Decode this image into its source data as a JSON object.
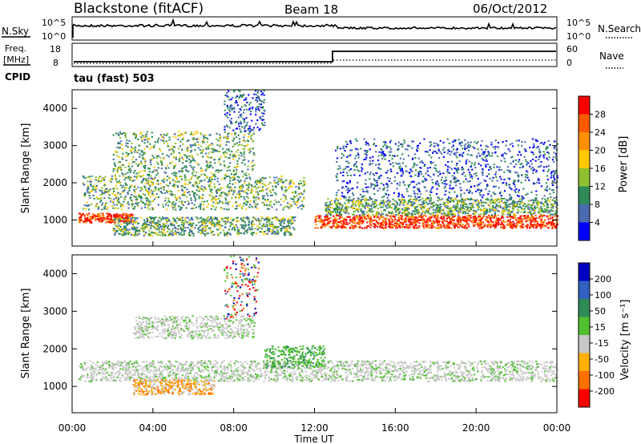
{
  "header": {
    "title": "Blackstone (fitACF)",
    "beam": "Beam 18",
    "date": "06/Oct/2012"
  },
  "nsky_panel": {
    "left_label": "N.Sky",
    "left_ticks": [
      "10^5",
      "10^0"
    ],
    "right_ticks": [
      "10^5",
      "10^0"
    ],
    "right_label": "N.Search"
  },
  "freq_panel": {
    "left_label_1": "Freq.",
    "left_label_2": "[MHz]",
    "left_ticks": [
      "18",
      "8"
    ],
    "right_ticks": [
      "60",
      "0"
    ],
    "right_label": "Nave",
    "cpid_label": "CPID",
    "cpid_value": "tau (fast) 503"
  },
  "chart_data": [
    {
      "type": "heatmap",
      "name": "power",
      "ylabel": "Slant Range [km]",
      "y_ticks": [
        "1000",
        "2000",
        "3000",
        "4000"
      ],
      "ylim": [
        300,
        4500
      ],
      "colorbar_label": "Power [dB]",
      "colorbar_ticks": [
        "28",
        "24",
        "20",
        "16",
        "12",
        "8",
        "4"
      ],
      "colorbar_colors": [
        "#ff0000",
        "#ff5a00",
        "#ff9000",
        "#ffc800",
        "#90c030",
        "#2e8b57",
        "#4a6ab0",
        "#0000ff"
      ],
      "bands": [
        {
          "t": [
            0.3,
            3.0
          ],
          "r": [
            950,
            1200
          ],
          "level": "high"
        },
        {
          "t": [
            12.0,
            24.0
          ],
          "r": [
            800,
            1150
          ],
          "level": "high"
        },
        {
          "t": [
            0.5,
            11.5
          ],
          "r": [
            1300,
            2200
          ],
          "level": "mid"
        },
        {
          "t": [
            2.0,
            9.0
          ],
          "r": [
            2200,
            3400
          ],
          "level": "mid"
        },
        {
          "t": [
            12.5,
            24.0
          ],
          "r": [
            1150,
            1600
          ],
          "level": "mid"
        },
        {
          "t": [
            2.0,
            11.0
          ],
          "r": [
            600,
            1100
          ],
          "level": "mid"
        },
        {
          "t": [
            7.5,
            9.5
          ],
          "r": [
            3400,
            4500
          ],
          "level": "low"
        },
        {
          "t": [
            13.0,
            24.0
          ],
          "r": [
            1600,
            3200
          ],
          "level": "low"
        }
      ]
    },
    {
      "type": "heatmap",
      "name": "velocity",
      "ylabel": "Slant Range [km]",
      "y_ticks": [
        "1000",
        "2000",
        "3000",
        "4000"
      ],
      "ylim": [
        300,
        4500
      ],
      "colorbar_label": "Velocity [m s⁻¹]",
      "colorbar_ticks": [
        "200",
        "100",
        "50",
        "15",
        "-15",
        "-50",
        "-100",
        "-200"
      ],
      "colorbar_colors": [
        "#0000c0",
        "#3060c0",
        "#2e8b57",
        "#50c030",
        "#c8c8c8",
        "#ffb000",
        "#ff7000",
        "#ff0000"
      ],
      "x_ticks": [
        "00:00",
        "04:00",
        "08:00",
        "12:00",
        "16:00",
        "20:00",
        "00:00"
      ],
      "xlabel": "Time UT",
      "bands": [
        {
          "t": [
            0.3,
            24.0
          ],
          "r": [
            1150,
            1700
          ],
          "level": "ground"
        },
        {
          "t": [
            3.0,
            9.0
          ],
          "r": [
            2300,
            2900
          ],
          "level": "ground"
        },
        {
          "t": [
            9.5,
            12.5
          ],
          "r": [
            1500,
            2100
          ],
          "level": "pos"
        },
        {
          "t": [
            3.0,
            7.0
          ],
          "r": [
            800,
            1200
          ],
          "level": "neg"
        },
        {
          "t": [
            7.5,
            9.2
          ],
          "r": [
            2800,
            4500
          ],
          "level": "mixed"
        }
      ]
    }
  ]
}
